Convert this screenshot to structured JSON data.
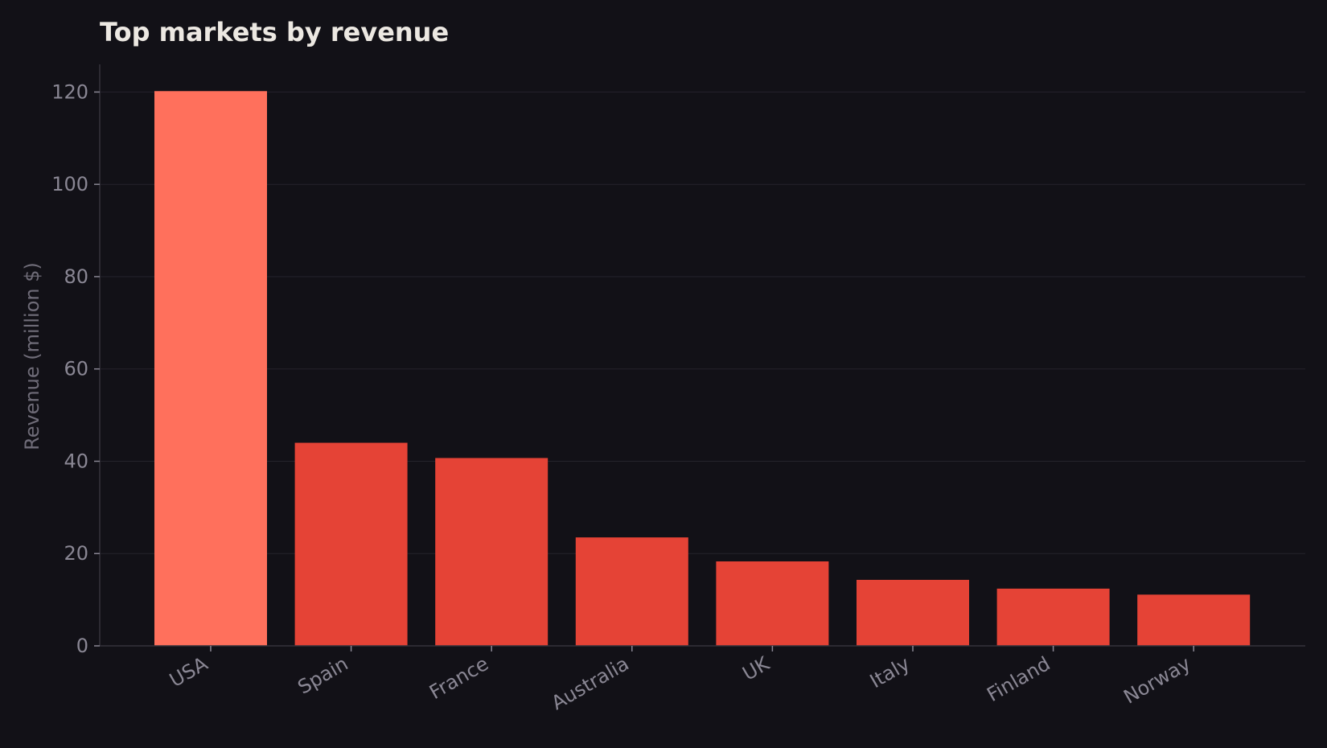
{
  "chart_data": {
    "type": "bar",
    "title": "Top markets by revenue",
    "xlabel": "",
    "ylabel": "Revenue (million $)",
    "categories": [
      "USA",
      "Spain",
      "France",
      "Australia",
      "UK",
      "Italy",
      "Finland",
      "Norway"
    ],
    "values": [
      120.2,
      44.0,
      40.7,
      23.5,
      18.3,
      14.3,
      12.4,
      11.1
    ],
    "ylim": [
      0,
      126
    ],
    "yticks": [
      "0",
      "20",
      "40",
      "60",
      "80",
      "100",
      "120"
    ],
    "grid": true,
    "legend": "none",
    "colors": {
      "highlight": "#ff705c",
      "bar": "#e54336",
      "background": "#121117",
      "grid": "#24232c",
      "axis": "#34333c"
    }
  }
}
